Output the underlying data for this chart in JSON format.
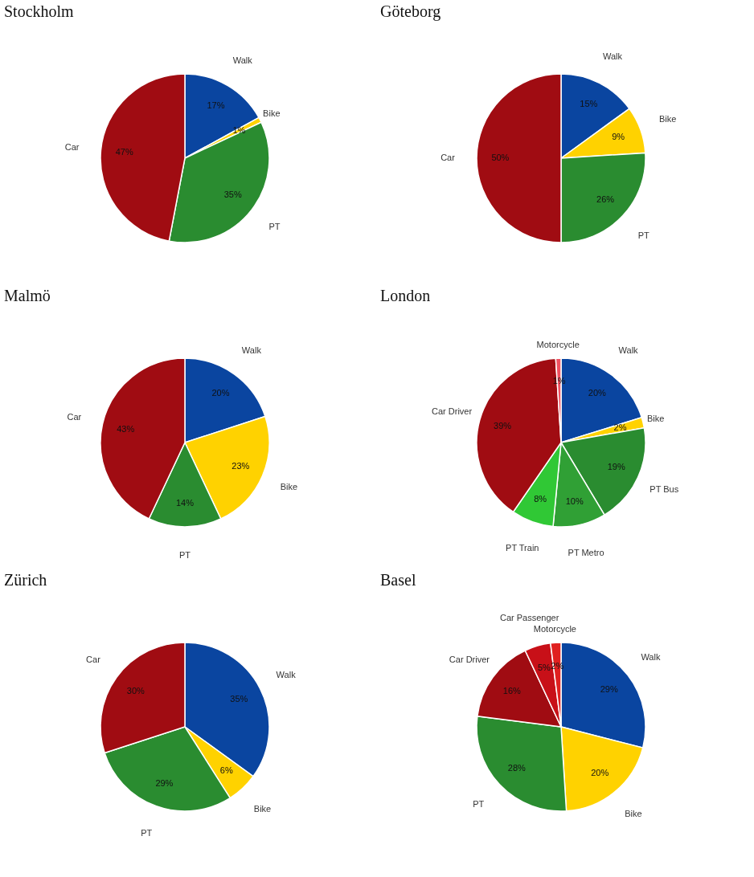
{
  "chart_data": [
    {
      "type": "pie",
      "title": "Stockholm",
      "categories": [
        "Walk",
        "Bike",
        "PT",
        "Car"
      ],
      "values": [
        17,
        1,
        35,
        47
      ],
      "colors": [
        "#0a45a0",
        "#ffd200",
        "#2a8c30",
        "#a00c12"
      ],
      "value_labels": [
        "17%",
        "1%",
        "35%",
        "47%"
      ]
    },
    {
      "type": "pie",
      "title": "Göteborg",
      "categories": [
        "Walk",
        "Bike",
        "PT",
        "Car"
      ],
      "values": [
        15,
        9,
        26,
        50
      ],
      "colors": [
        "#0a45a0",
        "#ffd200",
        "#2a8c30",
        "#a00c12"
      ],
      "value_labels": [
        "15%",
        "9%",
        "26%",
        "50%"
      ]
    },
    {
      "type": "pie",
      "title": "Malmö",
      "categories": [
        "Walk",
        "Bike",
        "PT",
        "Car"
      ],
      "values": [
        20,
        23,
        14,
        43
      ],
      "colors": [
        "#0a45a0",
        "#ffd200",
        "#2a8c30",
        "#a00c12"
      ],
      "value_labels": [
        "20%",
        "23%",
        "14%",
        "43%"
      ]
    },
    {
      "type": "pie",
      "title": "London",
      "categories": [
        "Walk",
        "Bike",
        "PT Bus",
        "PT Metro",
        "PT Train",
        "Car Driver",
        "Motorcycle"
      ],
      "values": [
        20,
        2,
        19,
        10,
        8,
        39,
        1
      ],
      "colors": [
        "#0a45a0",
        "#ffd200",
        "#2a8c30",
        "#30a035",
        "#30c835",
        "#a00c12",
        "#f05060"
      ],
      "value_labels": [
        "20%",
        "2%",
        "19%",
        "10%",
        "8%",
        "39%",
        "1%"
      ]
    },
    {
      "type": "pie",
      "title": "Zürich",
      "categories": [
        "Walk",
        "Bike",
        "PT",
        "Car"
      ],
      "values": [
        35,
        6,
        29,
        30
      ],
      "colors": [
        "#0a45a0",
        "#ffd200",
        "#2a8c30",
        "#a00c12"
      ],
      "value_labels": [
        "35%",
        "6%",
        "29%",
        "30%"
      ]
    },
    {
      "type": "pie",
      "title": "Basel",
      "categories": [
        "Walk",
        "Bike",
        "PT",
        "Car Driver",
        "Car Passenger",
        "Motorcycle"
      ],
      "values": [
        29,
        20,
        28,
        16,
        5,
        2
      ],
      "colors": [
        "#0a45a0",
        "#ffd200",
        "#2a8c30",
        "#a00c12",
        "#c81018",
        "#e02020"
      ],
      "value_labels": [
        "29%",
        "20%",
        "28%",
        "16%",
        "5%",
        "2%"
      ]
    }
  ]
}
